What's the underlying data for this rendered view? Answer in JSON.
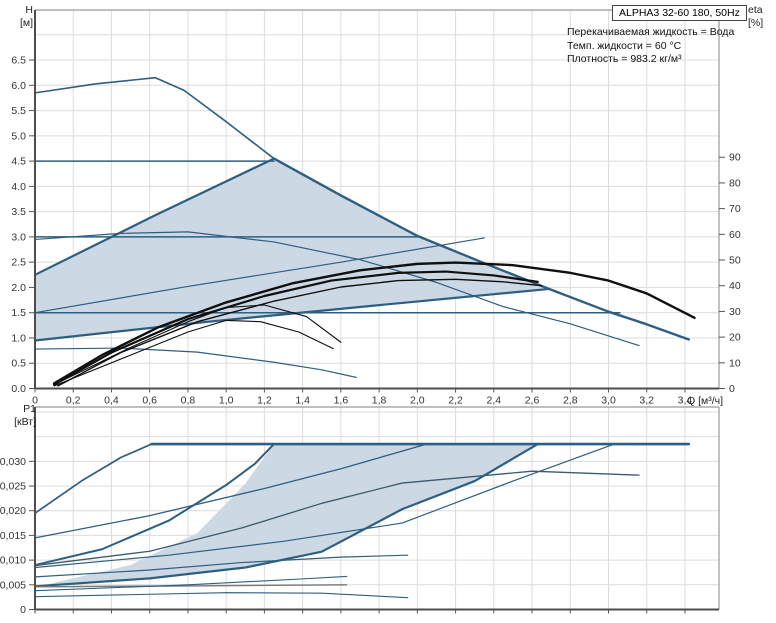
{
  "header": {
    "title": "ALPHA3 32-60 180, 50Hz",
    "info_lines": [
      "Перекачиваемая жидкость = Вода",
      "Темп. жидкости = 60 °C",
      "Плотность = 983.2 кг/м³"
    ]
  },
  "colors": {
    "curve_blue": "#2e5f80",
    "curve_black": "#101010",
    "curve_gray": "#777777",
    "curve_slate": "#3d5a6b",
    "range_fill": "#ccd8e4",
    "grid": "#dcdcdc",
    "frame_dark": "#4d4d4d",
    "frame_light": "#999999",
    "tick": "#555555",
    "text": "#333333"
  },
  "chart_data": [
    {
      "type": "line",
      "id": "hq",
      "title": "",
      "x_axis": {
        "label": "Q [м³/ч]",
        "range": [
          0,
          3.578
        ],
        "ticks": [
          0,
          0.2,
          0.4,
          0.6,
          0.8,
          1.0,
          1.2,
          1.4,
          1.6,
          1.8,
          2.0,
          2.2,
          2.4,
          2.6,
          2.8,
          3.0,
          3.2,
          3.4
        ],
        "tick_labels": [
          "0",
          "0,2",
          "0,4",
          "0,6",
          "0,8",
          "1,0",
          "1,2",
          "1,4",
          "1,6",
          "1,8",
          "2,0",
          "2,2",
          "2,4",
          "2,6",
          "2,8",
          "3,0",
          "3,2",
          "3,4"
        ]
      },
      "y_left": {
        "label_1": "H",
        "label_2": "[м]",
        "range": [
          0,
          7.49
        ],
        "grid_step": 0.5,
        "ticks": [
          0,
          0.5,
          1.0,
          1.5,
          2.0,
          2.5,
          3.0,
          3.5,
          4.0,
          4.5,
          5.0,
          5.5,
          6.0,
          6.5
        ],
        "tick_labels": [
          "0.0",
          "0.5",
          "1.0",
          "1.5",
          "2.0",
          "2.5",
          "3.0",
          "3.5",
          "4.0",
          "4.5",
          "5.0",
          "5.5",
          "6.0",
          "6.5"
        ]
      },
      "y_right": {
        "label_1": "eta",
        "label_2": "[%]",
        "range": [
          0,
          147.3
        ],
        "ticks": [
          0,
          10,
          20,
          30,
          40,
          50,
          60,
          70,
          80,
          90
        ],
        "tick_labels": [
          "0",
          "10",
          "20",
          "30",
          "40",
          "50",
          "60",
          "70",
          "80",
          "90"
        ]
      },
      "range_polygon": [
        [
          0,
          2.25
        ],
        [
          0.63,
          3.43
        ],
        [
          1.25,
          4.55
        ],
        [
          1.6,
          3.82
        ],
        [
          2.0,
          3.02
        ],
        [
          2.35,
          2.48
        ],
        [
          2.69,
          1.97
        ],
        [
          0,
          0.95
        ]
      ],
      "series": [
        {
          "name": "max-speed-curve",
          "axis": "h",
          "color": "#2e5f80",
          "width": 1.6,
          "points": [
            [
              0,
              5.85
            ],
            [
              0.32,
              6.03
            ],
            [
              0.63,
              6.15
            ],
            [
              0.78,
              5.9
            ],
            [
              1.0,
              5.28
            ],
            [
              1.25,
              4.55
            ]
          ]
        },
        {
          "name": "autoadapt-max-limit",
          "axis": "h",
          "color": "#2e5f80",
          "width": 2.4,
          "points": [
            [
              1.25,
              4.55
            ],
            [
              1.6,
              3.82
            ],
            [
              2.0,
              3.02
            ],
            [
              2.35,
              2.48
            ],
            [
              2.69,
              1.97
            ],
            [
              3.0,
              1.52
            ],
            [
              3.2,
              1.27
            ],
            [
              3.42,
              0.97
            ]
          ]
        },
        {
          "name": "autoadapt-prop-limit",
          "axis": "h",
          "color": "#2e5f80",
          "width": 2.2,
          "points": [
            [
              0,
              2.25
            ],
            [
              0.63,
              3.43
            ],
            [
              1.25,
              4.55
            ]
          ]
        },
        {
          "name": "autoadapt-min-limit",
          "axis": "h",
          "color": "#2e5f80",
          "width": 2.2,
          "points": [
            [
              0,
              0.95
            ],
            [
              0.9,
              1.32
            ],
            [
              1.8,
              1.65
            ],
            [
              2.69,
              1.97
            ]
          ]
        },
        {
          "name": "const-pressure-4-5",
          "axis": "h",
          "color": "#2e5f80",
          "width": 1.5,
          "points": [
            [
              0,
              4.5
            ],
            [
              1.25,
              4.5
            ]
          ]
        },
        {
          "name": "const-pressure-3-0",
          "axis": "h",
          "color": "#2e5f80",
          "width": 1.5,
          "points": [
            [
              0,
              3.0
            ],
            [
              2.02,
              3.0
            ]
          ]
        },
        {
          "name": "const-pressure-1-5",
          "axis": "h",
          "color": "#2e5f80",
          "width": 1.5,
          "points": [
            [
              0,
              1.5
            ],
            [
              3.06,
              1.5
            ]
          ]
        },
        {
          "name": "prop-pressure-mid",
          "axis": "h",
          "color": "#2e5f80",
          "width": 1.2,
          "points": [
            [
              0,
              1.5
            ],
            [
              0.8,
              2.02
            ],
            [
              1.6,
              2.5
            ],
            [
              2.35,
              2.98
            ]
          ]
        },
        {
          "name": "speed-ii-curve",
          "axis": "h",
          "color": "#2e5f80",
          "width": 1.2,
          "points": [
            [
              0,
              2.95
            ],
            [
              0.45,
              3.07
            ],
            [
              0.8,
              3.1
            ],
            [
              1.25,
              2.9
            ],
            [
              1.7,
              2.55
            ],
            [
              2.1,
              2.1
            ],
            [
              2.45,
              1.62
            ],
            [
              2.8,
              1.28
            ],
            [
              3.16,
              0.85
            ]
          ]
        },
        {
          "name": "speed-i-curve",
          "axis": "h",
          "color": "#2e5f80",
          "width": 1.2,
          "points": [
            [
              0,
              0.78
            ],
            [
              0.45,
              0.8
            ],
            [
              0.85,
              0.72
            ],
            [
              1.25,
              0.52
            ],
            [
              1.5,
              0.37
            ],
            [
              1.68,
              0.22
            ]
          ]
        },
        {
          "name": "eta-curve-max",
          "axis": "eta",
          "color": "#101010",
          "width": 2.4,
          "points": [
            [
              0.1,
              2
            ],
            [
              0.35,
              13
            ],
            [
              0.65,
              24
            ],
            [
              1.0,
              33.5
            ],
            [
              1.35,
              41
            ],
            [
              1.7,
              46
            ],
            [
              2.0,
              48.5
            ],
            [
              2.2,
              49
            ],
            [
              2.5,
              48
            ],
            [
              2.8,
              45
            ],
            [
              3.0,
              42
            ],
            [
              3.2,
              37
            ],
            [
              3.45,
              27.5
            ]
          ]
        },
        {
          "name": "eta-curve-2",
          "axis": "eta",
          "color": "#101010",
          "width": 2.2,
          "points": [
            [
              0.1,
              1.5
            ],
            [
              0.4,
              14
            ],
            [
              0.8,
              27
            ],
            [
              1.2,
              36
            ],
            [
              1.55,
              42
            ],
            [
              1.9,
              45
            ],
            [
              2.15,
              45.5
            ],
            [
              2.4,
              44
            ],
            [
              2.63,
              41.5
            ]
          ]
        },
        {
          "name": "eta-curve-3",
          "axis": "eta",
          "color": "#101010",
          "width": 1.4,
          "points": [
            [
              0.12,
              1
            ],
            [
              0.45,
              14
            ],
            [
              0.85,
              26
            ],
            [
              1.25,
              34
            ],
            [
              1.6,
              39.5
            ],
            [
              1.9,
              42
            ],
            [
              2.2,
              42.5
            ],
            [
              2.45,
              41.5
            ],
            [
              2.65,
              40
            ]
          ]
        },
        {
          "name": "eta-speed-ii",
          "axis": "eta",
          "color": "#101010",
          "width": 1.1,
          "points": [
            [
              0.1,
              1.5
            ],
            [
              0.5,
              16
            ],
            [
              0.8,
              26
            ],
            [
              1.0,
              31.5
            ],
            [
              1.2,
              32.5
            ],
            [
              1.42,
              28
            ],
            [
              1.6,
              18
            ]
          ]
        },
        {
          "name": "eta-speed-i",
          "axis": "eta",
          "color": "#101010",
          "width": 1.1,
          "points": [
            [
              0.1,
              1
            ],
            [
              0.5,
              13
            ],
            [
              0.8,
              22
            ],
            [
              1.0,
              26.5
            ],
            [
              1.18,
              26
            ],
            [
              1.38,
              22
            ],
            [
              1.56,
              15.5
            ]
          ]
        }
      ]
    },
    {
      "type": "line",
      "id": "p1",
      "title": "",
      "x_axis": {
        "label": "",
        "range": [
          0,
          3.578
        ],
        "ticks": [
          0,
          0.2,
          0.4,
          0.6,
          0.8,
          1.0,
          1.2,
          1.4,
          1.6,
          1.8,
          2.0,
          2.2,
          2.4,
          2.6,
          2.8,
          3.0,
          3.2,
          3.4
        ],
        "tick_labels": null
      },
      "y_left": {
        "label_1": "P1",
        "label_2": "[кВт]",
        "range": [
          0,
          0.041
        ],
        "grid_step": 0.005,
        "ticks": [
          0,
          0.005,
          0.01,
          0.015,
          0.02,
          0.025,
          0.03
        ],
        "tick_labels": [
          "0",
          "0,005",
          "0,010",
          "0,015",
          "0,020",
          "0,025",
          "0,030"
        ]
      },
      "range_polygon": [
        [
          0.03,
          0.0048
        ],
        [
          0.5,
          0.009
        ],
        [
          0.85,
          0.0155
        ],
        [
          1.1,
          0.0255
        ],
        [
          1.25,
          0.0335
        ],
        [
          2.63,
          0.0335
        ],
        [
          2.3,
          0.026
        ],
        [
          1.92,
          0.0203
        ],
        [
          1.5,
          0.0117
        ],
        [
          1.1,
          0.0085
        ],
        [
          0.6,
          0.0063
        ]
      ],
      "series": [
        {
          "name": "p1-limit-line",
          "axis": "p1",
          "color": "#2e5f80",
          "width": 2.6,
          "points": [
            [
              0.61,
              0.0335
            ],
            [
              3.42,
              0.0335
            ]
          ]
        },
        {
          "name": "p1-speed-iii-rise",
          "axis": "p1",
          "color": "#2e5f80",
          "width": 1.7,
          "points": [
            [
              0,
              0.0195
            ],
            [
              0.25,
              0.0262
            ],
            [
              0.45,
              0.0308
            ],
            [
              0.61,
              0.0335
            ]
          ]
        },
        {
          "name": "p1-autoadapt-left",
          "axis": "p1",
          "color": "#2e5f80",
          "width": 2.0,
          "points": [
            [
              0,
              0.009
            ],
            [
              0.35,
              0.0122
            ],
            [
              0.7,
              0.018
            ],
            [
              1.0,
              0.0252
            ],
            [
              1.15,
              0.0295
            ],
            [
              1.25,
              0.0335
            ]
          ]
        },
        {
          "name": "p1-curve-mid",
          "axis": "p1",
          "color": "#2e5f80",
          "width": 1.3,
          "points": [
            [
              0,
              0.0145
            ],
            [
              0.6,
              0.019
            ],
            [
              1.2,
              0.0245
            ],
            [
              1.6,
              0.0285
            ],
            [
              2.05,
              0.0335
            ]
          ]
        },
        {
          "name": "p1-autoadapt-lower",
          "axis": "p1",
          "color": "#2e5f80",
          "width": 2.2,
          "points": [
            [
              0,
              0.0047
            ],
            [
              0.6,
              0.0063
            ],
            [
              1.1,
              0.0085
            ],
            [
              1.5,
              0.0117
            ],
            [
              1.92,
              0.0203
            ],
            [
              2.3,
              0.026
            ],
            [
              2.63,
              0.0335
            ]
          ]
        },
        {
          "name": "p1-curve-thin",
          "axis": "p1",
          "color": "#2e5f80",
          "width": 1.2,
          "points": [
            [
              0,
              0.0085
            ],
            [
              0.7,
              0.011
            ],
            [
              1.3,
              0.0138
            ],
            [
              1.92,
              0.0175
            ],
            [
              2.5,
              0.026
            ],
            [
              3.03,
              0.0335
            ]
          ]
        },
        {
          "name": "p1-max-curve",
          "axis": "p1",
          "color": "#3d5a6b",
          "width": 1.3,
          "points": [
            [
              0,
              0.0089
            ],
            [
              0.6,
              0.0118
            ],
            [
              1.08,
              0.0165
            ],
            [
              1.5,
              0.0215
            ],
            [
              1.92,
              0.0256
            ],
            [
              2.6,
              0.028
            ],
            [
              3.16,
              0.0272
            ]
          ]
        },
        {
          "name": "p1-curve-low1",
          "axis": "p1",
          "color": "#2e5f80",
          "width": 1.2,
          "points": [
            [
              0,
              0.0066
            ],
            [
              0.6,
              0.008
            ],
            [
              1.08,
              0.0095
            ],
            [
              1.6,
              0.0106
            ],
            [
              1.95,
              0.011
            ]
          ]
        },
        {
          "name": "p1-speed-i-flat",
          "axis": "p1",
          "color": "#777777",
          "width": 1.4,
          "points": [
            [
              0,
              0.0046
            ],
            [
              0.9,
              0.0048
            ],
            [
              1.63,
              0.005
            ]
          ]
        },
        {
          "name": "p1-curve-low2",
          "axis": "p1",
          "color": "#2e5f80",
          "width": 1.1,
          "points": [
            [
              0,
              0.0038
            ],
            [
              0.8,
              0.005
            ],
            [
              1.4,
              0.0062
            ],
            [
              1.63,
              0.0067
            ]
          ]
        },
        {
          "name": "p1-curve-low3",
          "axis": "p1",
          "color": "#2e5f80",
          "width": 1.1,
          "points": [
            [
              0,
              0.0026
            ],
            [
              1.0,
              0.0034
            ],
            [
              1.5,
              0.0033
            ],
            [
              1.95,
              0.0024
            ]
          ]
        }
      ]
    }
  ]
}
